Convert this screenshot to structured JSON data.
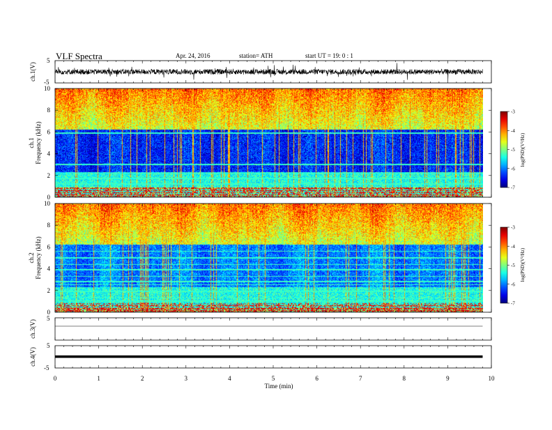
{
  "header": {
    "title": "VLF  Spectra",
    "date": "Apr. 24, 2016",
    "station": "station= ATH",
    "start_ut": "start  UT =   19: 0  : 1"
  },
  "chart_data": [
    {
      "type": "line",
      "name": "ch1-waveform",
      "ylabel": "ch.1(V)",
      "ylim": [
        -5,
        5
      ],
      "yticks": [
        "5",
        "-5"
      ],
      "x_range_min": [
        0,
        10
      ],
      "data_end_min": 9.8,
      "description_values": {
        "mean": 0,
        "noise_amplitude": 1.2,
        "spike_amplitude": 3
      }
    },
    {
      "type": "heatmap",
      "name": "ch1-spectrogram",
      "ylabel_top": "ch.1",
      "ylabel": "Frequency  (kHz)",
      "ylim": [
        0,
        10
      ],
      "yticks": [
        "0",
        "2",
        "4",
        "6",
        "8",
        "10"
      ],
      "xlim": [
        0,
        10
      ],
      "data_end_min": 9.8,
      "colorbar": {
        "label": "log(PSD)(V²/Hz)",
        "range": [
          -7,
          -3
        ],
        "ticks": [
          "-3",
          "-4",
          "-5",
          "-6",
          "-7"
        ]
      }
    },
    {
      "type": "heatmap",
      "name": "ch2-spectrogram",
      "ylabel_top": "ch.2",
      "ylabel": "Frequency  (kHz)",
      "ylim": [
        0,
        10
      ],
      "yticks": [
        "0",
        "2",
        "4",
        "6",
        "8",
        "10"
      ],
      "xlim": [
        0,
        10
      ],
      "data_end_min": 9.8,
      "colorbar": {
        "label": "log(PSD)(V²/Hz)",
        "range": [
          -7,
          -3
        ],
        "ticks": [
          "-3",
          "-4",
          "-5",
          "-6",
          "-7"
        ]
      }
    },
    {
      "type": "line",
      "name": "ch3-waveform",
      "ylabel": "ch.3(V)",
      "ylim": [
        -5,
        5
      ],
      "yticks": [
        "5"
      ],
      "data_end_min": 9.8
    },
    {
      "type": "line",
      "name": "ch4-waveform",
      "ylabel": "ch.4(V)",
      "ylim": [
        -5,
        5
      ],
      "yticks": [
        "5",
        "-5"
      ],
      "data_end_min": 9.8
    }
  ],
  "xaxis": {
    "label": "Time  (min)",
    "ticks": [
      "0",
      "1",
      "2",
      "3",
      "4",
      "5",
      "6",
      "7",
      "8",
      "9",
      "10"
    ],
    "range": [
      0,
      10
    ]
  }
}
